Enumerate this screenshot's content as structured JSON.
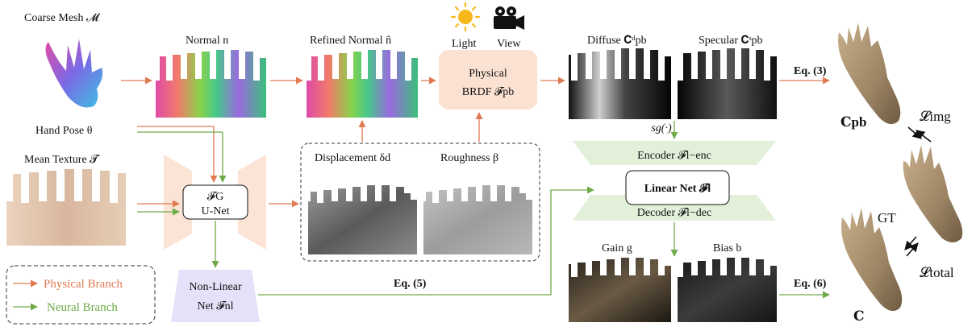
{
  "labels": {
    "coarse_mesh": "Coarse Mesh 𝓜",
    "hand_pose": "Hand Pose θ",
    "mean_texture": "Mean Texture 𝓣",
    "normal": "Normal n",
    "refined_normal": "Refined Normal n̂",
    "light": "Light",
    "view": "View",
    "physical_brdf_line1": "Physical",
    "physical_brdf_line2": "BRDF 𝓕pb",
    "diffuse": "Diffuse 𝐂ᵈpb",
    "specular": "Specular 𝐂ˢpb",
    "eq3": "Eq. (3)",
    "c_pb": "𝐂pb",
    "l_img": "𝓛img",
    "gt": "GT",
    "l_total": "𝓛total",
    "c": "𝐂",
    "sg": "sg(·)",
    "encoder": "Encoder 𝓕l−enc",
    "linear_net": "Linear Net 𝓕l",
    "decoder": "Decoder 𝓕l−dec",
    "gain": "Gain g",
    "bias": "Bias b",
    "eq6": "Eq. (6)",
    "displacement": "Displacement δd",
    "roughness": "Roughness β",
    "fg_line1": "𝓕G",
    "fg_line2": "U-Net",
    "nonlinear_line1": "Non-Linear",
    "nonlinear_line2": "Net 𝓕nl",
    "eq5": "Eq. (5)",
    "legend_physical": "Physical Branch",
    "legend_neural": "Neural Branch"
  },
  "colors": {
    "physical": "#e07a52",
    "neural": "#6fab48",
    "unet_fill": "#fbe3d5",
    "brdf_fill": "#fbe1d2",
    "encdec_fill": "#e2f0da",
    "nonlinear_fill": "#e4e2f8"
  }
}
